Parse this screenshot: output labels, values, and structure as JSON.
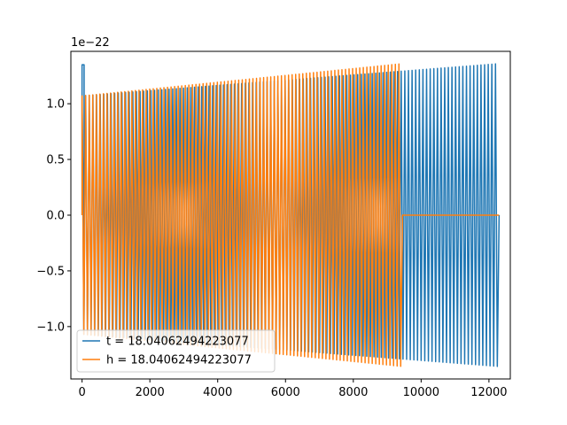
{
  "chart_data": {
    "type": "line",
    "offset_text": "1e−22",
    "xlim": [
      -330,
      12630
    ],
    "ylim": [
      -1.47,
      1.47
    ],
    "x_ticks": [
      0,
      2000,
      4000,
      6000,
      8000,
      10000,
      12000
    ],
    "x_tick_labels": [
      "0",
      "2000",
      "4000",
      "6000",
      "8000",
      "10000",
      "12000"
    ],
    "y_ticks": [
      -1.0,
      -0.5,
      0.0,
      0.5,
      1.0
    ],
    "y_tick_labels": [
      "−1.0",
      "−0.5",
      "0.0",
      "0.5",
      "1.0"
    ],
    "grid": false,
    "legend_position": "lower-left",
    "series": [
      {
        "name": "t = 18.04062494223077",
        "color": "#1f77b4",
        "x_range": [
          0,
          12300
        ],
        "amplitude_start": 1.07,
        "amplitude_end": 1.36,
        "initial_spike": 1.35,
        "oscillation_count": 115
      },
      {
        "name": "h = 18.04062494223077",
        "color": "#ff7f0e",
        "x_range": [
          0,
          9450
        ],
        "amplitude_start": 1.07,
        "amplitude_end": 1.36,
        "flat_after": [
          9450,
          12300
        ],
        "flat_value": 0.0,
        "oscillation_count": 90
      }
    ]
  }
}
